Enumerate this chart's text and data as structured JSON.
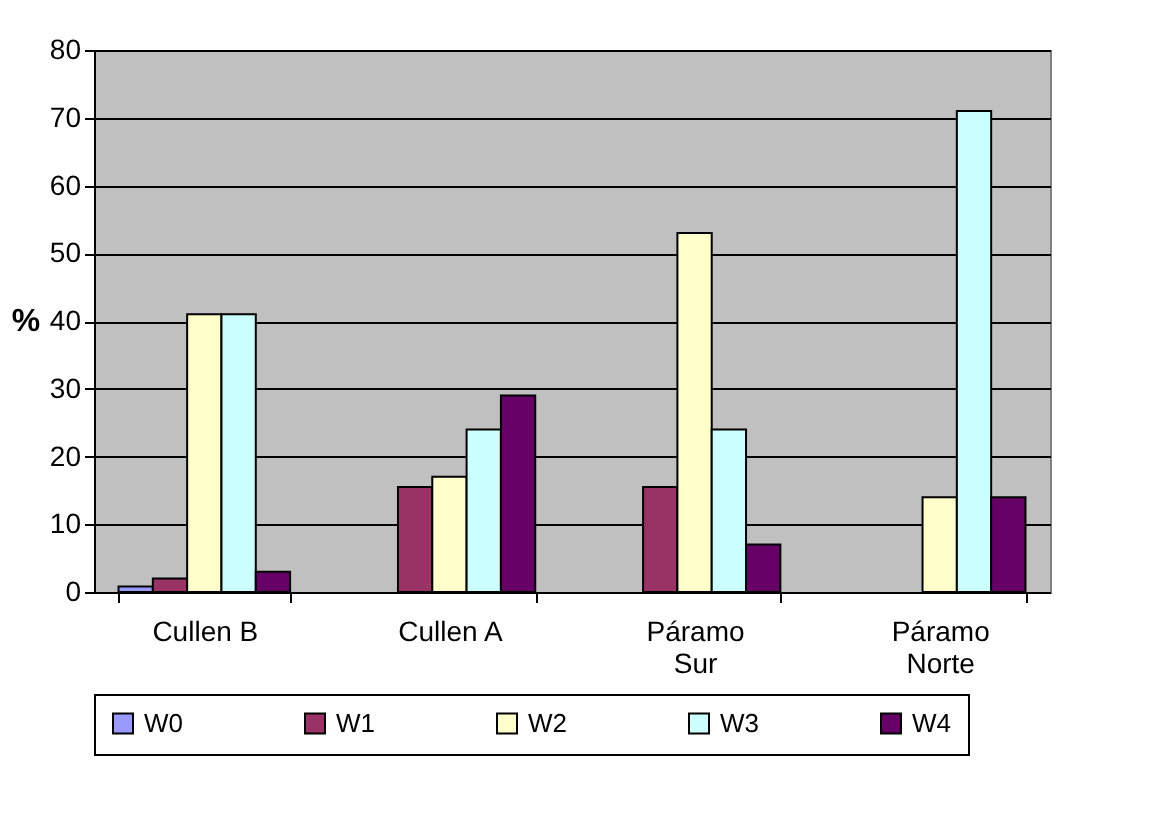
{
  "chart_data": {
    "type": "bar",
    "ylabel": "%",
    "categories": [
      "Cullen B",
      "Cullen A",
      "Páramo Sur",
      "Páramo Norte"
    ],
    "series": [
      {
        "name": "W0",
        "color": "#9999ff",
        "values": [
          0.8,
          null,
          null,
          null
        ]
      },
      {
        "name": "W1",
        "color": "#993366",
        "values": [
          2,
          15.5,
          15.5,
          null
        ]
      },
      {
        "name": "W2",
        "color": "#ffffcc",
        "values": [
          41,
          17,
          53,
          14
        ]
      },
      {
        "name": "W3",
        "color": "#ccffff",
        "values": [
          41,
          24,
          24,
          71
        ]
      },
      {
        "name": "W4",
        "color": "#660066",
        "values": [
          3,
          29,
          7,
          14
        ]
      }
    ],
    "ylim": [
      0,
      80
    ],
    "yticks": [
      0,
      10,
      20,
      30,
      40,
      50,
      60,
      70,
      80
    ],
    "grid": "y",
    "legend": "bottom"
  }
}
